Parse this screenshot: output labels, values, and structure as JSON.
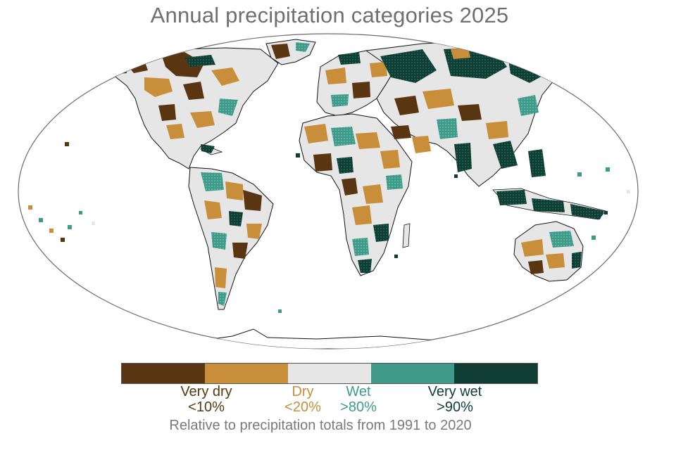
{
  "title": "Annual precipitation categories 2025",
  "subtitle": "Relative to precipitation totals from 1991 to 2020",
  "colors": {
    "very_dry": "#5a3511",
    "dry": "#c88e3a",
    "normal": "#e6e6e6",
    "wet": "#3f9a8a",
    "very_wet": "#0f3d33",
    "outline": "#111111",
    "ocean": "#ffffff"
  },
  "legend": {
    "swatches": [
      {
        "key": "very_dry",
        "color": "#5a3511"
      },
      {
        "key": "dry",
        "color": "#c88e3a"
      },
      {
        "key": "normal",
        "color": "#e6e6e6"
      },
      {
        "key": "wet",
        "color": "#3f9a8a"
      },
      {
        "key": "very_wet",
        "color": "#0f3d33"
      }
    ],
    "labels": [
      {
        "name": "Very dry",
        "pct": "<10%",
        "color": "#5a3511"
      },
      {
        "name": "Dry",
        "pct": "<20%",
        "color": "#c88e3a"
      },
      {
        "name": "Wet",
        "pct": ">80%",
        "color": "#3f9a8a"
      },
      {
        "name": "Very wet",
        "pct": ">90%",
        "color": "#0f3d33"
      }
    ]
  }
}
